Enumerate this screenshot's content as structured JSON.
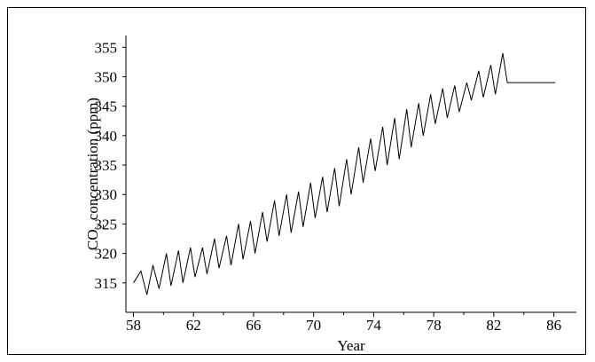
{
  "chart_data": {
    "type": "line",
    "title": "",
    "xlabel": "Year",
    "ylabel": {
      "prefix": "CO",
      "subscript": "2",
      "suffix": " concentration  (ppm)"
    },
    "xlim": [
      57.5,
      87.5
    ],
    "ylim": [
      310,
      357
    ],
    "x_ticks": [
      58,
      62,
      66,
      70,
      74,
      78,
      82,
      86
    ],
    "x_tick_labels": [
      "58",
      "62",
      "66",
      "70",
      "74",
      "78",
      "82",
      "86"
    ],
    "y_ticks": [
      315,
      320,
      325,
      330,
      335,
      340,
      345,
      350,
      355
    ],
    "y_tick_labels": [
      "315",
      "320",
      "325",
      "330",
      "335",
      "340",
      "345",
      "350",
      "355"
    ],
    "grid": false,
    "legend": "none",
    "line_color": "#000000",
    "series": [
      {
        "x": [
          58.0,
          58.5,
          58.9,
          59.3,
          59.7,
          60.2,
          60.5,
          61.0,
          61.3,
          61.8,
          62.1,
          62.6,
          62.9,
          63.4,
          63.7,
          64.2,
          64.5,
          65.0,
          65.3,
          65.8,
          66.1,
          66.6,
          66.9,
          67.4,
          67.7,
          68.2,
          68.5,
          69.0,
          69.3,
          69.8,
          70.1,
          70.6,
          70.9,
          71.4,
          71.7,
          72.2,
          72.5,
          73.0,
          73.3,
          73.8,
          74.1,
          74.6,
          74.9,
          75.4,
          75.7,
          76.2,
          76.5,
          77.0,
          77.3,
          77.8,
          78.1,
          78.6,
          78.9,
          79.4,
          79.7,
          80.2,
          80.5,
          81.0,
          81.3,
          81.8,
          82.1,
          82.6,
          82.9,
          83.4,
          83.7,
          84.2,
          84.5,
          85.0,
          85.3,
          85.8,
          86.1,
          86.6
        ],
        "y": [
          315.0,
          317.0,
          313.0,
          318.0,
          314.0,
          320.0,
          314.5,
          320.5,
          315.0,
          321.0,
          316.0,
          321.0,
          316.5,
          322.5,
          317.5,
          323.0,
          318.0,
          325.0,
          319.0,
          325.5,
          320.0,
          327.0,
          322.0,
          329.0,
          323.0,
          330.0,
          323.5,
          330.5,
          324.5,
          332.0,
          326.0,
          333.0,
          327.0,
          334.5,
          328.0,
          336.0,
          330.0,
          338.0,
          332.0,
          339.5,
          334.0,
          341.5,
          335.0,
          343.0,
          336.0,
          344.5,
          338.0,
          345.5,
          340.0,
          347.0,
          342.0,
          348.0,
          343.0,
          348.5,
          344.0,
          349.0,
          346.0,
          351.0,
          346.5,
          352.0,
          347.0,
          354.0,
          349.0,
          349.0,
          349.0,
          349.0,
          349.0,
          349.0,
          349.0,
          349.0,
          349.0,
          349.0
        ]
      }
    ]
  }
}
